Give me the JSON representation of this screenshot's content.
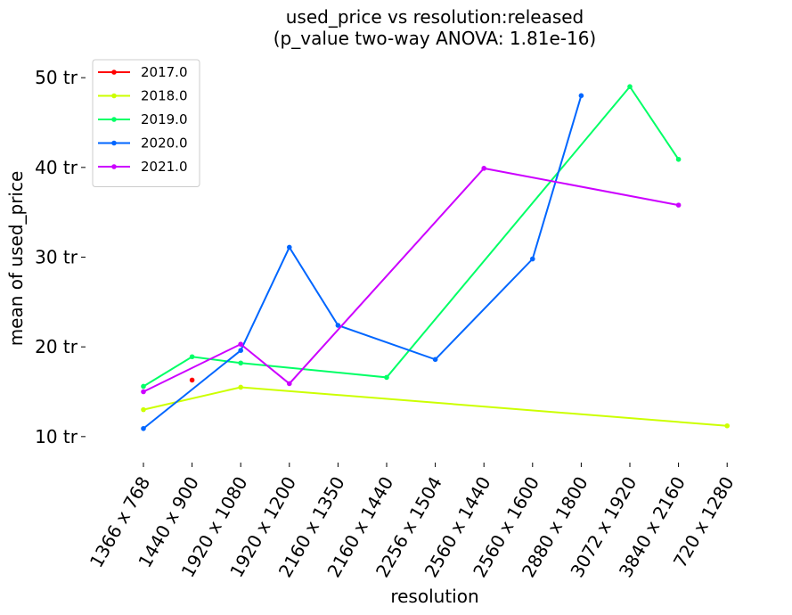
{
  "chart_data": {
    "type": "line",
    "title": "used_price vs resolution:released",
    "subtitle": "(p_value two-way ANOVA: 1.81e-16)",
    "xlabel": "resolution",
    "ylabel": "mean of used_price",
    "categories": [
      "1366 x 768",
      "1440 x 900",
      "1920 x 1080",
      "1920 x 1200",
      "2160 x 1350",
      "2160 x 1440",
      "2256 x 1504",
      "2560 x 1440",
      "2560 x 1600",
      "2880 x 1800",
      "3072 x 1920",
      "3840 x 2160",
      "720 x 1280"
    ],
    "ylim": [
      7.5,
      52.5
    ],
    "yticks": [
      10,
      20,
      30,
      40,
      50
    ],
    "ytick_labels": [
      "10 tr",
      "20 tr",
      "30 tr",
      "40 tr",
      "50 tr"
    ],
    "grid": false,
    "legend_position": "top-left",
    "series": [
      {
        "name": "2017.0",
        "color": "#ff0000",
        "values": [
          null,
          16.3,
          null,
          null,
          null,
          null,
          null,
          null,
          null,
          null,
          null,
          null,
          null
        ]
      },
      {
        "name": "2018.0",
        "color": "#ccff00",
        "values": [
          13.0,
          null,
          15.5,
          null,
          null,
          null,
          null,
          null,
          null,
          null,
          null,
          null,
          11.2
        ]
      },
      {
        "name": "2019.0",
        "color": "#00ff66",
        "values": [
          15.6,
          18.9,
          18.2,
          null,
          null,
          16.6,
          null,
          null,
          null,
          null,
          49.0,
          40.9,
          null
        ]
      },
      {
        "name": "2020.0",
        "color": "#0066ff",
        "values": [
          10.9,
          null,
          19.6,
          31.1,
          22.4,
          null,
          18.6,
          null,
          29.8,
          48.0,
          null,
          null,
          null
        ]
      },
      {
        "name": "2021.0",
        "color": "#cc00ff",
        "values": [
          15.0,
          null,
          20.3,
          15.9,
          null,
          null,
          null,
          39.9,
          null,
          null,
          null,
          35.8,
          null
        ]
      }
    ]
  }
}
